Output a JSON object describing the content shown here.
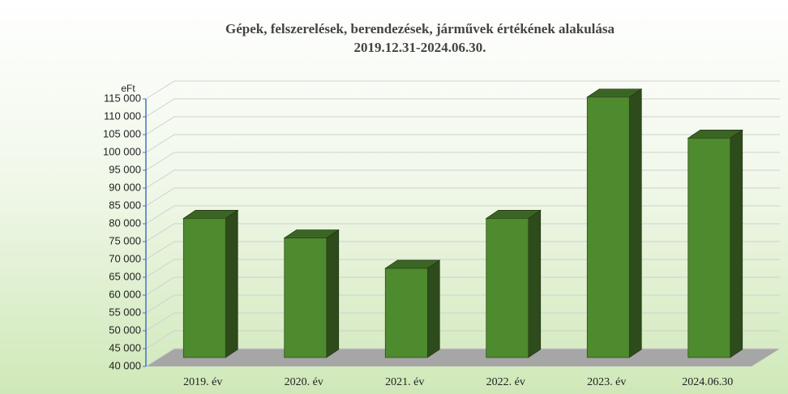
{
  "chart_data": {
    "type": "bar3d",
    "title": "Gépek, felszerelések, berendezések, járművek értékének alakulása",
    "subtitle": "2019.12.31-2024.06.30.",
    "y_label": "eFt",
    "categories": [
      "2019. év",
      "2020. év",
      "2021. év",
      "2022. év",
      "2023. év",
      "2024.06.30"
    ],
    "values": [
      79000,
      73500,
      65000,
      79000,
      113000,
      101500
    ],
    "color": "#4e8a2e",
    "ylim": [
      40000,
      115000
    ],
    "yticks": [
      {
        "value": 40000,
        "label": "40 000"
      },
      {
        "value": 45000,
        "label": "45 000"
      },
      {
        "value": 50000,
        "label": "50 000"
      },
      {
        "value": 55000,
        "label": "55 000"
      },
      {
        "value": 60000,
        "label": "60 000"
      },
      {
        "value": 65000,
        "label": "65 000"
      },
      {
        "value": 70000,
        "label": "70 000"
      },
      {
        "value": 75000,
        "label": "75 000"
      },
      {
        "value": 80000,
        "label": "80 000"
      },
      {
        "value": 85000,
        "label": "85 000"
      },
      {
        "value": 90000,
        "label": "90 000"
      },
      {
        "value": 95000,
        "label": "95 000"
      },
      {
        "value": 100000,
        "label": "100 000"
      },
      {
        "value": 105000,
        "label": "105 000"
      },
      {
        "value": 110000,
        "label": "110 000"
      },
      {
        "value": 115000,
        "label": "115 000"
      }
    ],
    "grid": true
  }
}
